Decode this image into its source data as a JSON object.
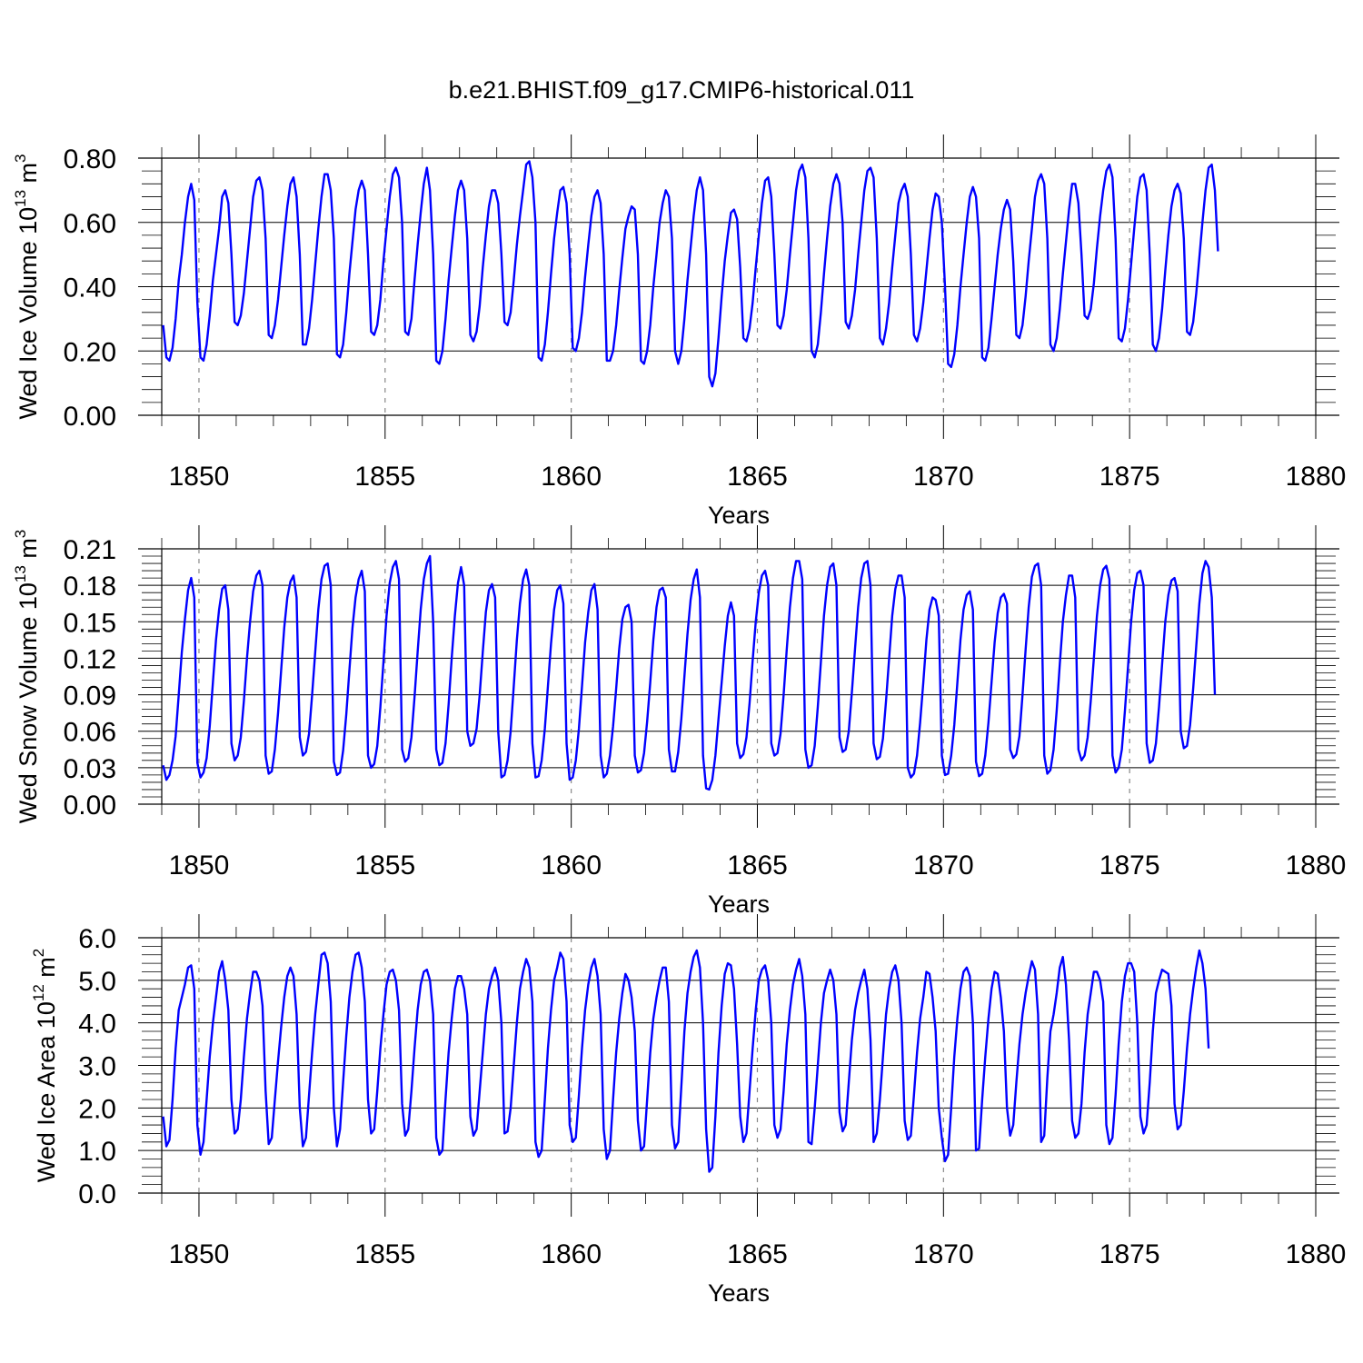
{
  "title": "b.e21.BHIST.f09_g17.CMIP6-historical.011",
  "colors": {
    "series": "#0000ff",
    "axis": "#000000",
    "refline": "#888888"
  },
  "chart_data": [
    {
      "type": "line",
      "ylabel": "Wed Ice Volume 10",
      "ylabel_exp": "13",
      "ylabel_unit": " m",
      "ylabel_unit_exp": "3",
      "xlabel": "Years",
      "xlim": [
        1849.0,
        1880.0
      ],
      "ylim": [
        0.0,
        0.8
      ],
      "yticks": [
        0.0,
        0.2,
        0.4,
        0.6,
        0.8
      ],
      "ytick_labels": [
        "0.00",
        "0.20",
        "0.40",
        "0.60",
        "0.80"
      ],
      "xticks": [
        1850,
        1855,
        1860,
        1865,
        1870,
        1875,
        1880
      ],
      "xtick_labels": [
        "1850",
        "1855",
        "1860",
        "1865",
        "1870",
        "1875",
        "1880"
      ],
      "reference_lines_x": [
        1850,
        1855,
        1860,
        1865,
        1870,
        1875
      ],
      "grid": false,
      "x_start": 1849.04,
      "x_step": 0.0833333,
      "values": [
        0.28,
        0.18,
        0.17,
        0.21,
        0.3,
        0.42,
        0.5,
        0.6,
        0.68,
        0.72,
        0.67,
        0.35,
        0.18,
        0.17,
        0.22,
        0.31,
        0.42,
        0.5,
        0.58,
        0.68,
        0.7,
        0.66,
        0.5,
        0.29,
        0.28,
        0.31,
        0.38,
        0.48,
        0.58,
        0.68,
        0.73,
        0.74,
        0.7,
        0.55,
        0.25,
        0.24,
        0.28,
        0.36,
        0.46,
        0.56,
        0.65,
        0.72,
        0.74,
        0.68,
        0.5,
        0.22,
        0.22,
        0.27,
        0.36,
        0.47,
        0.58,
        0.68,
        0.75,
        0.75,
        0.7,
        0.55,
        0.19,
        0.18,
        0.22,
        0.32,
        0.44,
        0.54,
        0.64,
        0.7,
        0.73,
        0.7,
        0.5,
        0.26,
        0.25,
        0.28,
        0.36,
        0.48,
        0.58,
        0.68,
        0.75,
        0.77,
        0.74,
        0.6,
        0.26,
        0.25,
        0.3,
        0.42,
        0.53,
        0.63,
        0.72,
        0.77,
        0.7,
        0.5,
        0.17,
        0.16,
        0.2,
        0.3,
        0.42,
        0.52,
        0.62,
        0.7,
        0.73,
        0.7,
        0.55,
        0.25,
        0.23,
        0.26,
        0.34,
        0.46,
        0.56,
        0.65,
        0.7,
        0.7,
        0.66,
        0.5,
        0.29,
        0.28,
        0.32,
        0.42,
        0.53,
        0.62,
        0.7,
        0.78,
        0.79,
        0.74,
        0.6,
        0.18,
        0.17,
        0.22,
        0.32,
        0.44,
        0.55,
        0.63,
        0.7,
        0.71,
        0.66,
        0.5,
        0.21,
        0.2,
        0.24,
        0.32,
        0.43,
        0.53,
        0.62,
        0.68,
        0.7,
        0.66,
        0.5,
        0.17,
        0.17,
        0.2,
        0.28,
        0.39,
        0.49,
        0.58,
        0.62,
        0.65,
        0.64,
        0.5,
        0.17,
        0.16,
        0.2,
        0.28,
        0.4,
        0.5,
        0.6,
        0.66,
        0.7,
        0.68,
        0.55,
        0.2,
        0.16,
        0.2,
        0.3,
        0.42,
        0.52,
        0.62,
        0.7,
        0.74,
        0.7,
        0.5,
        0.12,
        0.09,
        0.13,
        0.24,
        0.37,
        0.48,
        0.56,
        0.63,
        0.64,
        0.61,
        0.46,
        0.24,
        0.23,
        0.27,
        0.35,
        0.46,
        0.56,
        0.66,
        0.73,
        0.74,
        0.68,
        0.5,
        0.28,
        0.27,
        0.31,
        0.39,
        0.5,
        0.6,
        0.7,
        0.76,
        0.78,
        0.74,
        0.55,
        0.2,
        0.18,
        0.22,
        0.32,
        0.44,
        0.55,
        0.65,
        0.72,
        0.75,
        0.72,
        0.6,
        0.29,
        0.27,
        0.31,
        0.39,
        0.5,
        0.6,
        0.7,
        0.76,
        0.77,
        0.74,
        0.55,
        0.24,
        0.22,
        0.27,
        0.35,
        0.46,
        0.56,
        0.66,
        0.7,
        0.72,
        0.68,
        0.5,
        0.25,
        0.23,
        0.27,
        0.35,
        0.45,
        0.55,
        0.64,
        0.69,
        0.68,
        0.6,
        0.4,
        0.16,
        0.15,
        0.19,
        0.28,
        0.4,
        0.5,
        0.6,
        0.68,
        0.71,
        0.68,
        0.55,
        0.18,
        0.17,
        0.21,
        0.3,
        0.4,
        0.5,
        0.58,
        0.64,
        0.67,
        0.64,
        0.48,
        0.25,
        0.24,
        0.28,
        0.37,
        0.48,
        0.58,
        0.68,
        0.73,
        0.75,
        0.72,
        0.55,
        0.22,
        0.2,
        0.24,
        0.33,
        0.44,
        0.54,
        0.64,
        0.72,
        0.72,
        0.66,
        0.5,
        0.31,
        0.3,
        0.33,
        0.41,
        0.52,
        0.62,
        0.7,
        0.76,
        0.78,
        0.74,
        0.55,
        0.24,
        0.23,
        0.27,
        0.36,
        0.47,
        0.58,
        0.68,
        0.74,
        0.75,
        0.7,
        0.5,
        0.22,
        0.2,
        0.24,
        0.33,
        0.45,
        0.56,
        0.65,
        0.7,
        0.72,
        0.69,
        0.55,
        0.26,
        0.25,
        0.29,
        0.38,
        0.49,
        0.6,
        0.7,
        0.77,
        0.78,
        0.7,
        0.51
      ]
    },
    {
      "type": "line",
      "ylabel": "Wed Snow Volume 10",
      "ylabel_exp": "13",
      "ylabel_unit": " m",
      "ylabel_unit_exp": "3",
      "xlabel": "Years",
      "xlim": [
        1849.0,
        1880.0
      ],
      "ylim": [
        0.0,
        0.21
      ],
      "yticks": [
        0.0,
        0.03,
        0.06,
        0.09,
        0.12,
        0.15,
        0.18,
        0.21
      ],
      "ytick_labels": [
        "0.00",
        "0.03",
        "0.06",
        "0.09",
        "0.12",
        "0.15",
        "0.18",
        "0.21"
      ],
      "xticks": [
        1850,
        1855,
        1860,
        1865,
        1870,
        1875,
        1880
      ],
      "xtick_labels": [
        "1850",
        "1855",
        "1860",
        "1865",
        "1870",
        "1875",
        "1880"
      ],
      "reference_lines_x": [
        1850,
        1855,
        1860,
        1865,
        1870,
        1875
      ],
      "grid": false,
      "x_start": 1849.04,
      "x_step": 0.0833333,
      "values": [
        0.032,
        0.02,
        0.024,
        0.036,
        0.056,
        0.09,
        0.125,
        0.152,
        0.176,
        0.186,
        0.17,
        0.034,
        0.022,
        0.026,
        0.038,
        0.064,
        0.1,
        0.135,
        0.16,
        0.177,
        0.18,
        0.16,
        0.05,
        0.036,
        0.04,
        0.055,
        0.085,
        0.12,
        0.15,
        0.175,
        0.188,
        0.192,
        0.18,
        0.04,
        0.025,
        0.027,
        0.045,
        0.075,
        0.11,
        0.145,
        0.17,
        0.183,
        0.188,
        0.17,
        0.055,
        0.04,
        0.043,
        0.058,
        0.09,
        0.125,
        0.16,
        0.185,
        0.196,
        0.198,
        0.18,
        0.035,
        0.024,
        0.026,
        0.044,
        0.074,
        0.11,
        0.145,
        0.17,
        0.185,
        0.192,
        0.175,
        0.04,
        0.03,
        0.033,
        0.048,
        0.08,
        0.117,
        0.155,
        0.182,
        0.195,
        0.2,
        0.185,
        0.045,
        0.035,
        0.038,
        0.055,
        0.088,
        0.125,
        0.16,
        0.185,
        0.198,
        0.204,
        0.15,
        0.045,
        0.032,
        0.034,
        0.05,
        0.082,
        0.12,
        0.155,
        0.182,
        0.195,
        0.18,
        0.06,
        0.048,
        0.05,
        0.062,
        0.09,
        0.125,
        0.158,
        0.176,
        0.181,
        0.17,
        0.06,
        0.022,
        0.024,
        0.036,
        0.06,
        0.097,
        0.135,
        0.165,
        0.185,
        0.193,
        0.18,
        0.05,
        0.022,
        0.023,
        0.036,
        0.062,
        0.097,
        0.132,
        0.16,
        0.176,
        0.18,
        0.165,
        0.05,
        0.02,
        0.022,
        0.036,
        0.062,
        0.097,
        0.133,
        0.158,
        0.176,
        0.181,
        0.16,
        0.04,
        0.022,
        0.025,
        0.04,
        0.064,
        0.095,
        0.128,
        0.152,
        0.162,
        0.164,
        0.15,
        0.04,
        0.026,
        0.028,
        0.042,
        0.068,
        0.1,
        0.135,
        0.162,
        0.176,
        0.178,
        0.17,
        0.045,
        0.027,
        0.027,
        0.043,
        0.07,
        0.105,
        0.14,
        0.168,
        0.185,
        0.193,
        0.17,
        0.04,
        0.013,
        0.012,
        0.02,
        0.04,
        0.07,
        0.1,
        0.13,
        0.155,
        0.166,
        0.155,
        0.05,
        0.038,
        0.041,
        0.055,
        0.083,
        0.118,
        0.15,
        0.174,
        0.188,
        0.192,
        0.18,
        0.05,
        0.04,
        0.042,
        0.058,
        0.09,
        0.127,
        0.162,
        0.186,
        0.2,
        0.2,
        0.185,
        0.045,
        0.03,
        0.032,
        0.048,
        0.08,
        0.117,
        0.155,
        0.18,
        0.195,
        0.198,
        0.18,
        0.055,
        0.043,
        0.045,
        0.06,
        0.092,
        0.128,
        0.162,
        0.186,
        0.198,
        0.2,
        0.18,
        0.05,
        0.037,
        0.039,
        0.054,
        0.085,
        0.12,
        0.155,
        0.177,
        0.188,
        0.188,
        0.17,
        0.03,
        0.022,
        0.025,
        0.04,
        0.067,
        0.1,
        0.135,
        0.16,
        0.17,
        0.168,
        0.155,
        0.04,
        0.024,
        0.025,
        0.04,
        0.065,
        0.1,
        0.135,
        0.16,
        0.172,
        0.175,
        0.16,
        0.035,
        0.023,
        0.025,
        0.04,
        0.067,
        0.1,
        0.133,
        0.157,
        0.17,
        0.173,
        0.165,
        0.045,
        0.038,
        0.041,
        0.056,
        0.09,
        0.127,
        0.162,
        0.187,
        0.196,
        0.198,
        0.18,
        0.04,
        0.025,
        0.028,
        0.045,
        0.077,
        0.115,
        0.15,
        0.172,
        0.188,
        0.188,
        0.17,
        0.045,
        0.036,
        0.04,
        0.055,
        0.085,
        0.12,
        0.155,
        0.18,
        0.193,
        0.196,
        0.185,
        0.04,
        0.026,
        0.03,
        0.045,
        0.077,
        0.113,
        0.15,
        0.176,
        0.19,
        0.192,
        0.18,
        0.05,
        0.034,
        0.036,
        0.05,
        0.08,
        0.115,
        0.15,
        0.172,
        0.184,
        0.186,
        0.175,
        0.06,
        0.046,
        0.048,
        0.065,
        0.095,
        0.13,
        0.165,
        0.19,
        0.2,
        0.195,
        0.17,
        0.09
      ]
    },
    {
      "type": "line",
      "ylabel": "Wed Ice Area 10",
      "ylabel_exp": "12",
      "ylabel_unit": " m",
      "ylabel_unit_exp": "2",
      "xlabel": "Years",
      "xlim": [
        1849.0,
        1880.0
      ],
      "ylim": [
        0.0,
        6.0
      ],
      "yticks": [
        0.0,
        1.0,
        2.0,
        3.0,
        4.0,
        5.0,
        6.0
      ],
      "ytick_labels": [
        "0.0",
        "1.0",
        "2.0",
        "3.0",
        "4.0",
        "5.0",
        "6.0"
      ],
      "xticks": [
        1850,
        1855,
        1860,
        1865,
        1870,
        1875,
        1880
      ],
      "xtick_labels": [
        "1850",
        "1855",
        "1860",
        "1865",
        "1870",
        "1875",
        "1880"
      ],
      "reference_lines_x": [
        1850,
        1855,
        1860,
        1865,
        1870,
        1875
      ],
      "grid": false,
      "x_start": 1849.04,
      "x_step": 0.0833333,
      "values": [
        1.8,
        1.1,
        1.25,
        2.2,
        3.4,
        4.3,
        4.6,
        4.9,
        5.3,
        5.35,
        4.8,
        1.6,
        0.9,
        1.2,
        2.2,
        3.2,
        4.0,
        4.6,
        5.2,
        5.45,
        5.0,
        4.3,
        2.2,
        1.4,
        1.5,
        2.2,
        3.2,
        4.1,
        4.7,
        5.2,
        5.2,
        5.0,
        4.4,
        2.4,
        1.15,
        1.3,
        2.2,
        3.1,
        3.9,
        4.6,
        5.1,
        5.3,
        5.1,
        4.2,
        2.0,
        1.1,
        1.3,
        2.3,
        3.3,
        4.2,
        4.9,
        5.6,
        5.65,
        5.4,
        4.5,
        2.0,
        1.1,
        1.5,
        2.6,
        3.7,
        4.6,
        5.2,
        5.6,
        5.65,
        5.3,
        4.5,
        2.2,
        1.4,
        1.5,
        2.4,
        3.4,
        4.2,
        4.9,
        5.2,
        5.25,
        5.0,
        4.3,
        2.1,
        1.35,
        1.5,
        2.4,
        3.4,
        4.3,
        4.9,
        5.2,
        5.25,
        5.0,
        4.2,
        1.3,
        0.9,
        1.0,
        2.2,
        3.3,
        4.1,
        4.8,
        5.1,
        5.1,
        4.8,
        4.2,
        1.8,
        1.35,
        1.5,
        2.4,
        3.3,
        4.2,
        4.8,
        5.1,
        5.3,
        5.0,
        4.0,
        1.4,
        1.45,
        2.0,
        3.0,
        4.0,
        4.8,
        5.2,
        5.5,
        5.3,
        4.5,
        1.2,
        0.85,
        1.0,
        2.2,
        3.4,
        4.3,
        5.0,
        5.3,
        5.65,
        5.5,
        4.5,
        1.6,
        1.2,
        1.3,
        2.3,
        3.4,
        4.3,
        4.9,
        5.3,
        5.5,
        5.1,
        4.2,
        1.5,
        0.8,
        1.0,
        2.2,
        3.3,
        4.1,
        4.7,
        5.15,
        5.0,
        4.6,
        3.8,
        1.7,
        1.0,
        1.1,
        2.2,
        3.3,
        4.1,
        4.6,
        5.0,
        5.3,
        5.3,
        4.5,
        1.6,
        1.05,
        1.2,
        2.5,
        3.8,
        4.7,
        5.2,
        5.55,
        5.7,
        5.3,
        4.0,
        1.5,
        0.5,
        0.6,
        1.8,
        3.3,
        4.4,
        5.15,
        5.4,
        5.35,
        4.8,
        3.5,
        1.8,
        1.2,
        1.4,
        2.4,
        3.4,
        4.3,
        5.0,
        5.25,
        5.35,
        5.0,
        4.0,
        1.6,
        1.3,
        1.5,
        2.4,
        3.5,
        4.3,
        4.9,
        5.25,
        5.5,
        5.1,
        4.2,
        1.2,
        1.15,
        2.0,
        3.0,
        4.0,
        4.7,
        5.0,
        5.25,
        5.0,
        4.2,
        1.9,
        1.45,
        1.6,
        2.6,
        3.6,
        4.3,
        4.7,
        5.0,
        5.25,
        4.8,
        3.6,
        1.2,
        1.4,
        2.2,
        3.2,
        4.2,
        4.8,
        5.2,
        5.35,
        5.0,
        4.0,
        1.7,
        1.25,
        1.35,
        2.3,
        3.3,
        4.1,
        4.6,
        5.2,
        5.15,
        4.6,
        3.8,
        2.0,
        1.3,
        0.75,
        0.9,
        2.0,
        3.2,
        4.1,
        4.8,
        5.2,
        5.3,
        5.1,
        4.0,
        1.0,
        1.05,
        2.2,
        3.2,
        4.1,
        4.8,
        5.2,
        5.15,
        4.6,
        3.8,
        2.0,
        1.35,
        1.6,
        2.6,
        3.5,
        4.2,
        4.7,
        5.1,
        5.45,
        5.25,
        4.2,
        1.2,
        1.35,
        2.7,
        3.8,
        4.2,
        4.7,
        5.3,
        5.55,
        4.9,
        3.6,
        1.7,
        1.3,
        1.4,
        2.1,
        3.3,
        4.2,
        4.7,
        5.2,
        5.2,
        5.0,
        4.5,
        1.6,
        1.15,
        1.3,
        2.3,
        3.5,
        4.5,
        5.1,
        5.4,
        5.4,
        5.2,
        4.0,
        1.8,
        1.4,
        1.6,
        2.6,
        3.8,
        4.7,
        5.0,
        5.25,
        5.2,
        5.15,
        4.4,
        2.1,
        1.5,
        1.6,
        2.4,
        3.4,
        4.2,
        4.8,
        5.3,
        5.7,
        5.4,
        4.8,
        3.4
      ]
    }
  ]
}
